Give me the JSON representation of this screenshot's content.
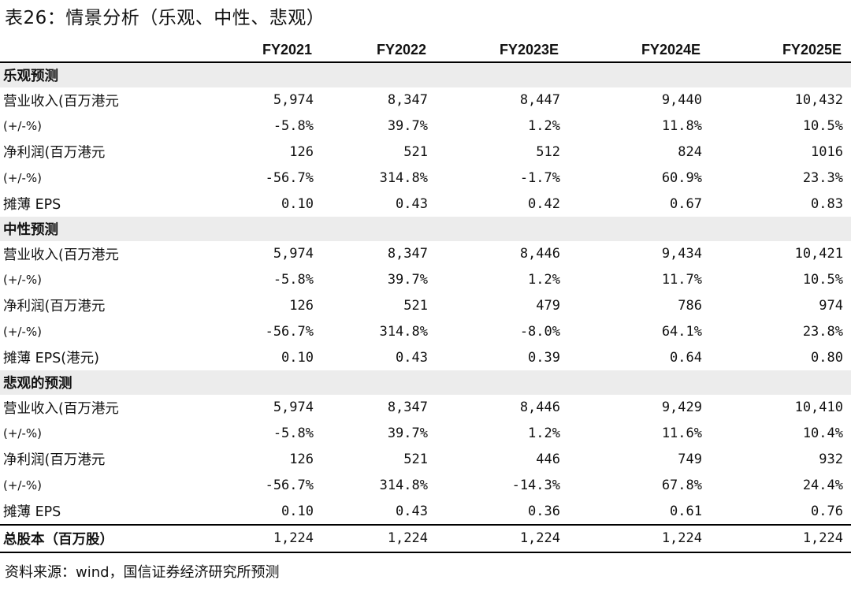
{
  "title": "表26：情景分析（乐观、中性、悲观）",
  "columns": [
    "FY2021",
    "FY2022",
    "FY2023E",
    "FY2024E",
    "FY2025E"
  ],
  "sections": [
    {
      "name": "乐观预测",
      "rows": [
        {
          "label": "营业收入(百万港元",
          "values": [
            "5,974",
            "8,347",
            "8,447",
            "9,440",
            "10,432"
          ]
        },
        {
          "label": "(+/-%)",
          "values": [
            "-5.8%",
            "39.7%",
            "1.2%",
            "11.8%",
            "10.5%"
          ]
        },
        {
          "label": "净利润(百万港元",
          "values": [
            "126",
            "521",
            "512",
            "824",
            "1016"
          ]
        },
        {
          "label": "(+/-%)",
          "values": [
            "-56.7%",
            "314.8%",
            "-1.7%",
            "60.9%",
            "23.3%"
          ]
        },
        {
          "label": "摊薄 EPS",
          "values": [
            "0.10",
            "0.43",
            "0.42",
            "0.67",
            "0.83"
          ]
        }
      ]
    },
    {
      "name": "中性预测",
      "rows": [
        {
          "label": "营业收入(百万港元",
          "values": [
            "5,974",
            "8,347",
            "8,446",
            "9,434",
            "10,421"
          ]
        },
        {
          "label": "(+/-%)",
          "values": [
            "-5.8%",
            "39.7%",
            "1.2%",
            "11.7%",
            "10.5%"
          ]
        },
        {
          "label": "净利润(百万港元",
          "values": [
            "126",
            "521",
            "479",
            "786",
            "974"
          ]
        },
        {
          "label": "(+/-%)",
          "values": [
            "-56.7%",
            "314.8%",
            "-8.0%",
            "64.1%",
            "23.8%"
          ]
        },
        {
          "label": "摊薄 EPS(港元)",
          "values": [
            "0.10",
            "0.43",
            "0.39",
            "0.64",
            "0.80"
          ]
        }
      ]
    },
    {
      "name": "悲观的预测",
      "rows": [
        {
          "label": "营业收入(百万港元",
          "values": [
            "5,974",
            "8,347",
            "8,446",
            "9,429",
            "10,410"
          ]
        },
        {
          "label": "(+/-%)",
          "values": [
            "-5.8%",
            "39.7%",
            "1.2%",
            "11.6%",
            "10.4%"
          ]
        },
        {
          "label": "净利润(百万港元",
          "values": [
            "126",
            "521",
            "446",
            "749",
            "932"
          ]
        },
        {
          "label": "(+/-%)",
          "values": [
            "-56.7%",
            "314.8%",
            "-14.3%",
            "67.8%",
            "24.4%"
          ]
        },
        {
          "label": "摊薄 EPS",
          "values": [
            "0.10",
            "0.43",
            "0.36",
            "0.61",
            "0.76"
          ]
        }
      ]
    }
  ],
  "total": {
    "label": "总股本（百万股）",
    "values": [
      "1,224",
      "1,224",
      "1,224",
      "1,224",
      "1,224"
    ]
  },
  "source": "资料来源：wind，国信证券经济研究所预测"
}
